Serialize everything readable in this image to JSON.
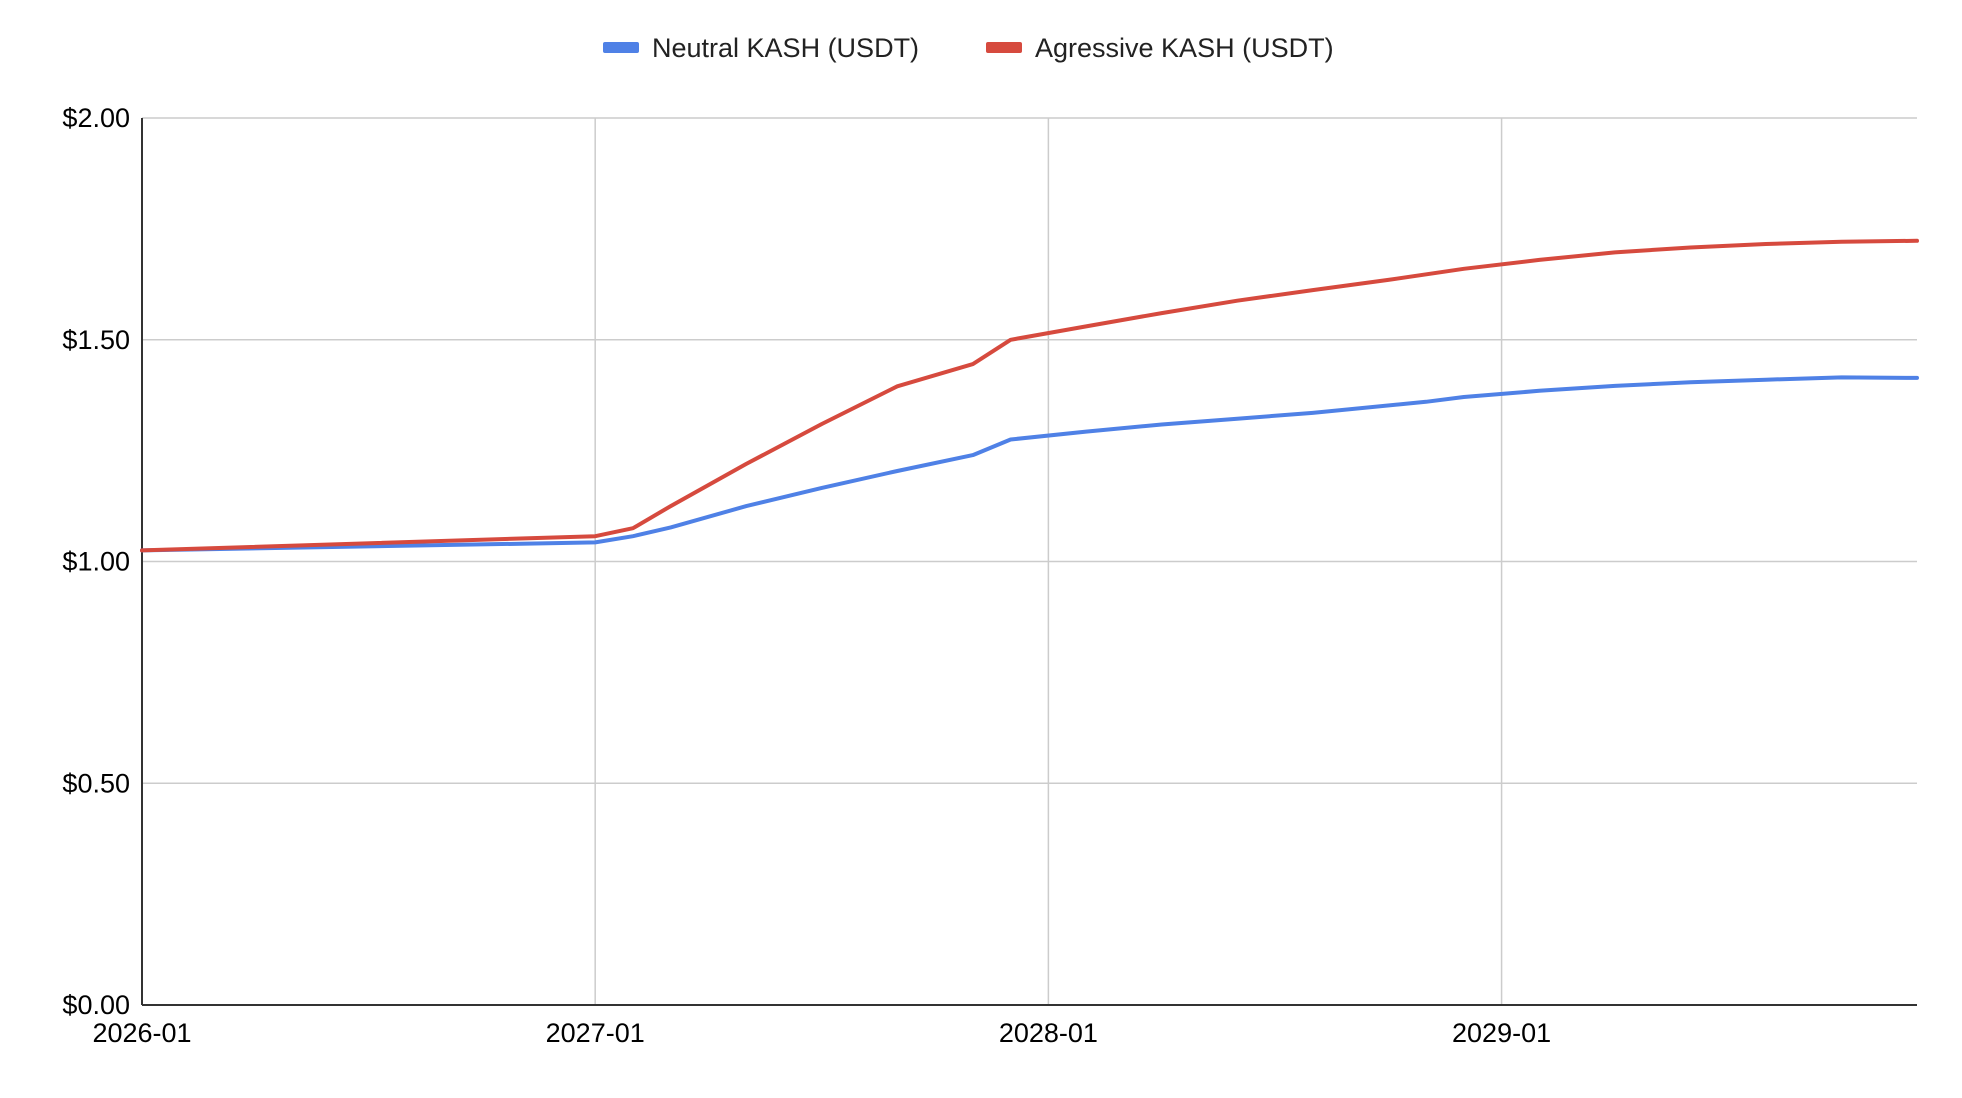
{
  "chart_data": {
    "type": "line",
    "title": "",
    "xlabel": "",
    "ylabel": "",
    "x_ticks": [
      "2026-01",
      "2027-01",
      "2028-01",
      "2029-01"
    ],
    "xlim": [
      "2026-01",
      "2029-12"
    ],
    "y_ticks": [
      "$0.00",
      "$0.50",
      "$1.00",
      "$1.50",
      "$2.00"
    ],
    "ylim": [
      0,
      2
    ],
    "grid": true,
    "legend_position": "top-center",
    "series": [
      {
        "name": "Neutral KASH (USDT)",
        "color": "#4f81e6",
        "points": [
          [
            "2026-01",
            1.025
          ],
          [
            "2027-01",
            1.043
          ],
          [
            "2027-02",
            1.057
          ],
          [
            "2027-03",
            1.077
          ],
          [
            "2027-05",
            1.125
          ],
          [
            "2027-07",
            1.166
          ],
          [
            "2027-09",
            1.204
          ],
          [
            "2027-11",
            1.24
          ],
          [
            "2027-12",
            1.275
          ],
          [
            "2028-02",
            1.293
          ],
          [
            "2028-04",
            1.309
          ],
          [
            "2028-06",
            1.322
          ],
          [
            "2028-08",
            1.335
          ],
          [
            "2028-11",
            1.36
          ],
          [
            "2028-12",
            1.371
          ],
          [
            "2029-02",
            1.385
          ],
          [
            "2029-04",
            1.396
          ],
          [
            "2029-06",
            1.404
          ],
          [
            "2029-08",
            1.41
          ],
          [
            "2029-10",
            1.415
          ],
          [
            "2029-12",
            1.414
          ]
        ]
      },
      {
        "name": "Agressive KASH (USDT)",
        "color": "#d64a3e",
        "points": [
          [
            "2026-01",
            1.025
          ],
          [
            "2027-01",
            1.057
          ],
          [
            "2027-02",
            1.075
          ],
          [
            "2027-03",
            1.125
          ],
          [
            "2027-05",
            1.22
          ],
          [
            "2027-07",
            1.31
          ],
          [
            "2027-09",
            1.395
          ],
          [
            "2027-11",
            1.445
          ],
          [
            "2027-12",
            1.5
          ],
          [
            "2028-02",
            1.53
          ],
          [
            "2028-04",
            1.56
          ],
          [
            "2028-06",
            1.588
          ],
          [
            "2028-08",
            1.612
          ],
          [
            "2028-10",
            1.635
          ],
          [
            "2028-12",
            1.66
          ],
          [
            "2029-02",
            1.68
          ],
          [
            "2029-04",
            1.697
          ],
          [
            "2029-06",
            1.708
          ],
          [
            "2029-08",
            1.716
          ],
          [
            "2029-10",
            1.721
          ],
          [
            "2029-12",
            1.723
          ]
        ]
      }
    ]
  }
}
